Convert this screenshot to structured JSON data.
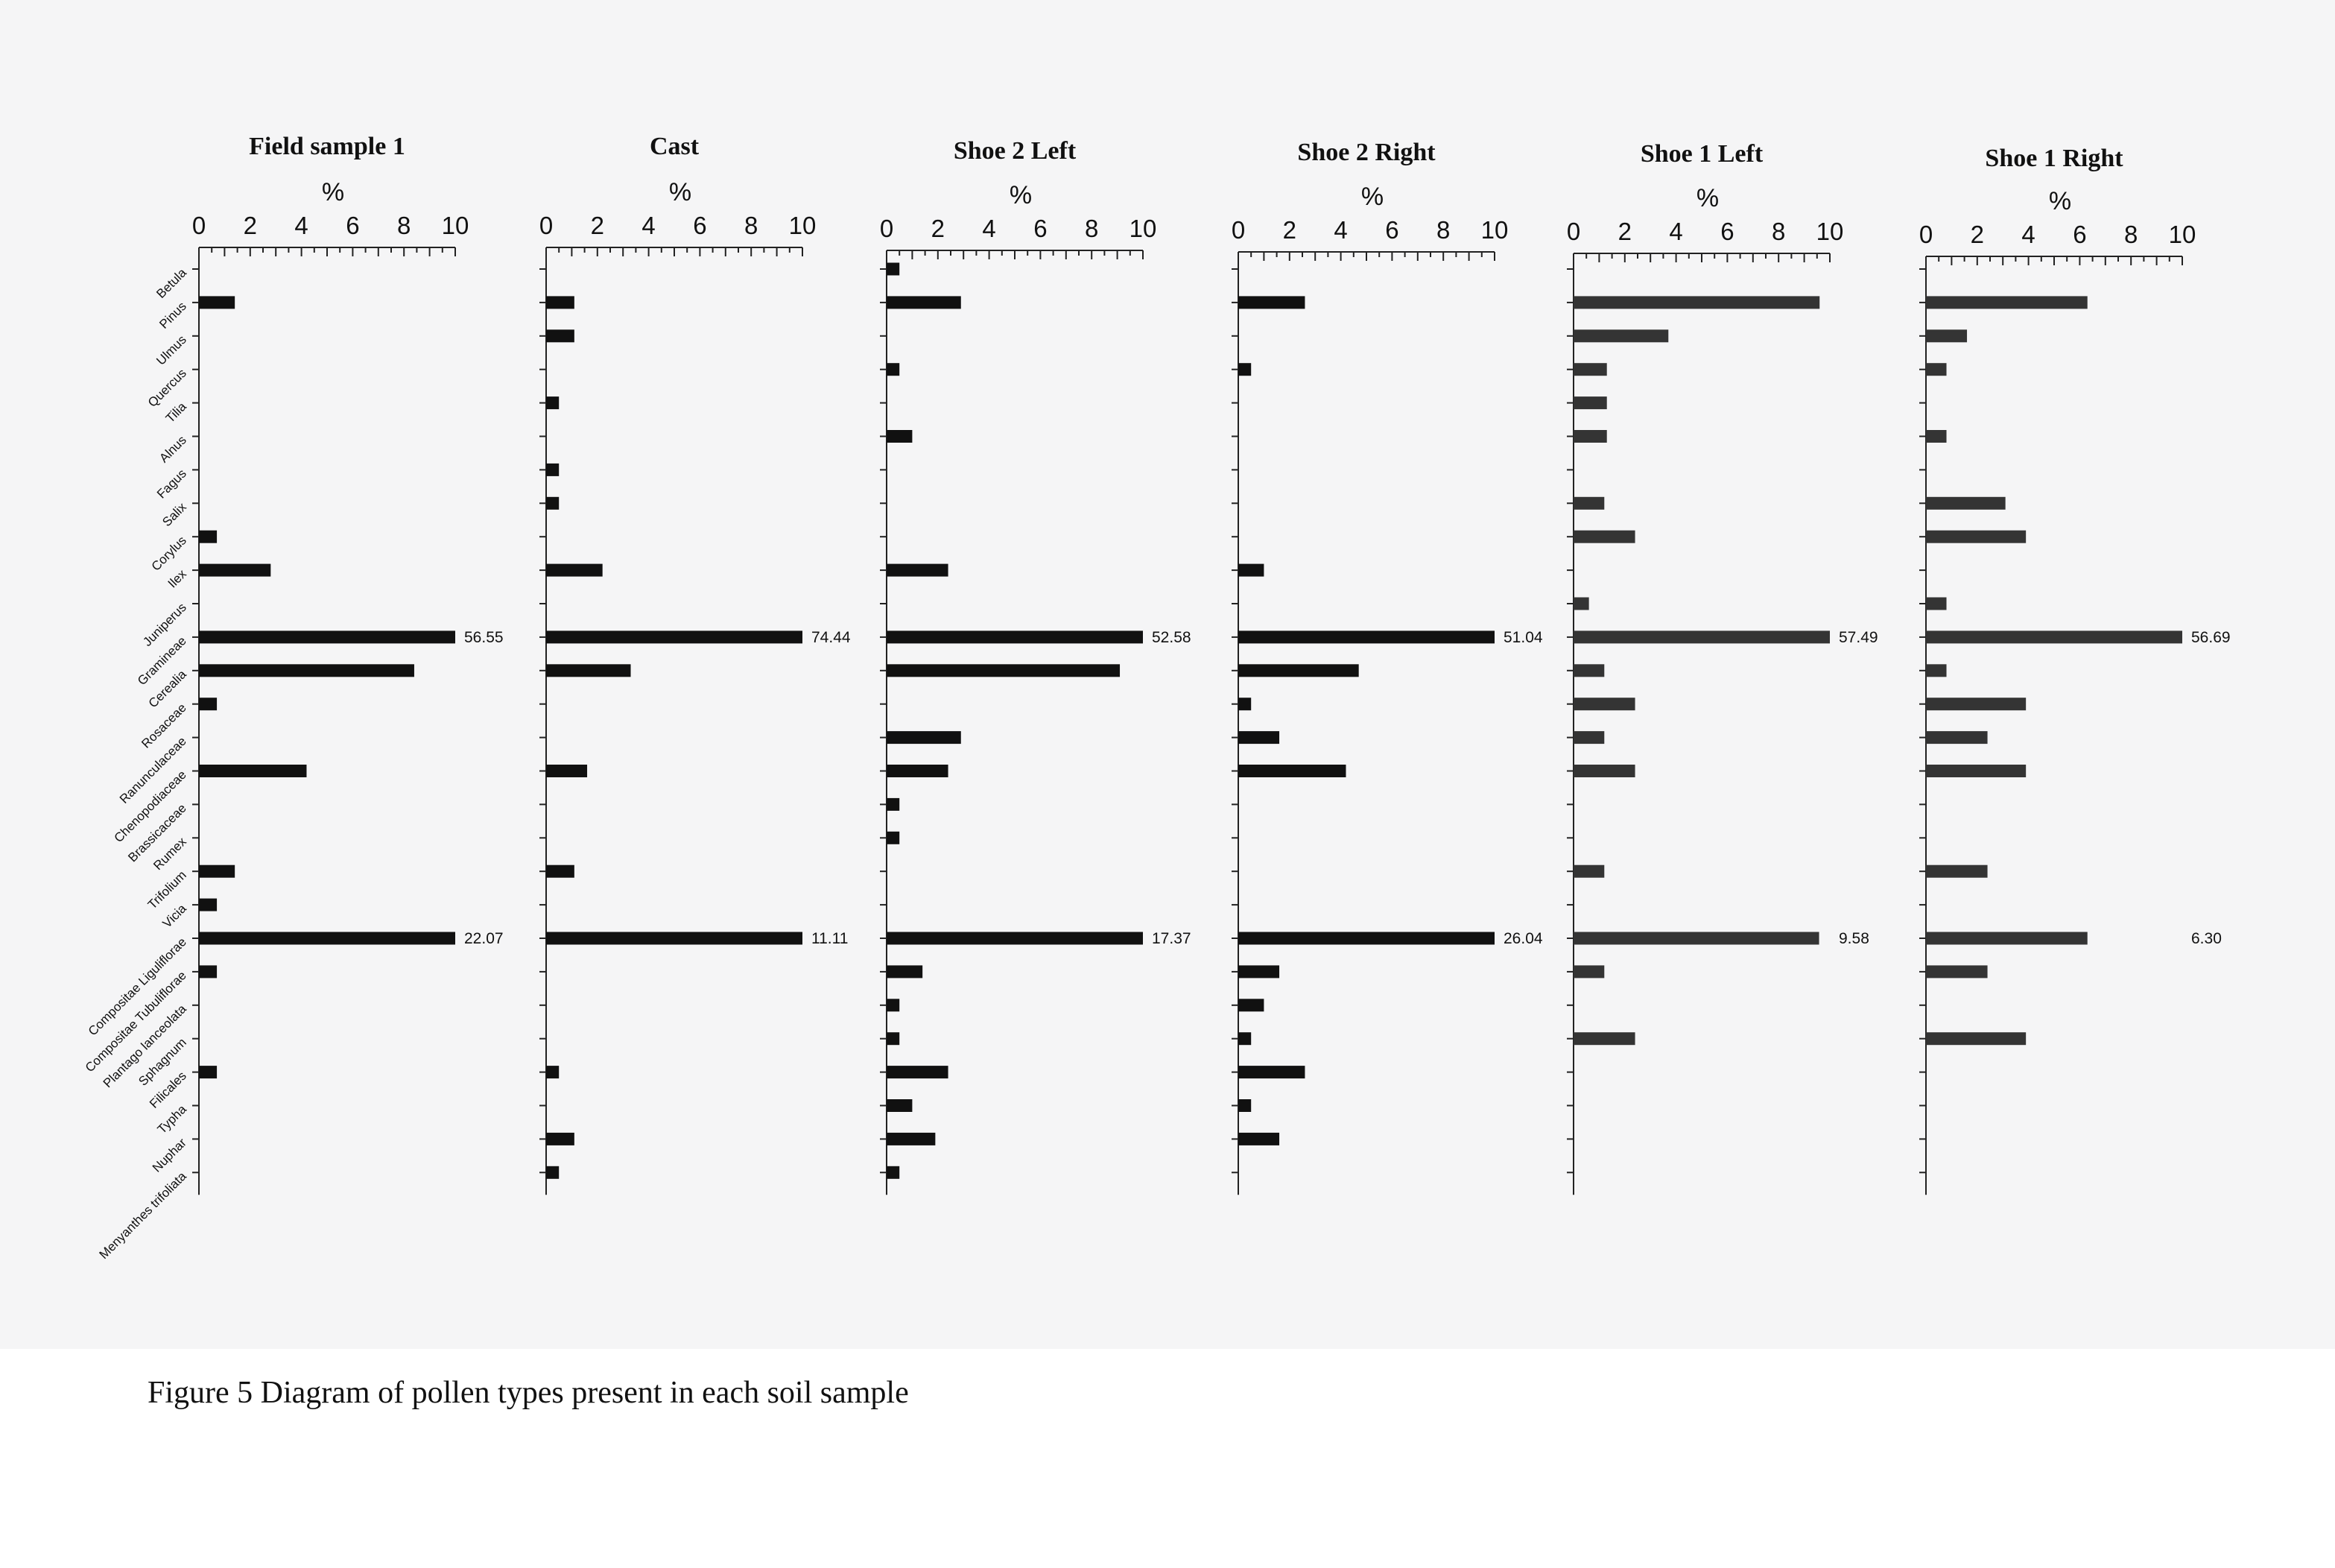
{
  "caption": "Figure 5  Diagram of pollen types present in each soil sample",
  "chart_data": {
    "type": "bar",
    "orientation": "horizontal",
    "axis_label": "%",
    "xlim": [
      0,
      10
    ],
    "ticks": [
      "0",
      "2",
      "4",
      "6",
      "8",
      "10"
    ],
    "categories": [
      "Betula",
      "Pinus",
      "Ulmus",
      "Quercus",
      "Tilia",
      "Alnus",
      "Fagus",
      "Salix",
      "Corylus",
      "Ilex",
      "Juniperus",
      "Gramineae",
      "Cerealia",
      "Rosaceae",
      "Ranunculaceae",
      "Chenopodiaceae",
      "Brassicaceae",
      "Rumex",
      "Trifolium",
      "Vicia",
      "Compositae Liguliflorae",
      "Compositae Tubuliflorae",
      "Plantago lanceolata",
      "Sphagnum",
      "Filicales",
      "Typha",
      "Nuphar",
      "Menyanthes trifoliata"
    ],
    "bar_colors": [
      "#111111",
      "#111111",
      "#111111",
      "#111111",
      "#343434",
      "#343434"
    ],
    "panels": [
      {
        "title": "Field sample 1",
        "values": [
          0,
          1.4,
          0,
          0,
          0,
          0,
          0,
          0,
          0.7,
          2.8,
          0,
          56.55,
          8.4,
          0.7,
          0,
          4.2,
          0,
          0,
          1.4,
          0.7,
          22.07,
          0.7,
          0,
          0,
          0.7,
          0,
          0,
          0
        ],
        "value_labels": [
          null,
          null,
          null,
          null,
          null,
          null,
          null,
          null,
          null,
          null,
          null,
          "56.55",
          null,
          null,
          null,
          null,
          null,
          null,
          null,
          null,
          "22.07",
          null,
          null,
          null,
          null,
          null,
          null,
          null
        ]
      },
      {
        "title": "Cast",
        "values": [
          0,
          1.1,
          1.1,
          0,
          0.5,
          0,
          0.5,
          0.5,
          0,
          2.2,
          0,
          74.44,
          3.3,
          0,
          0,
          1.6,
          0,
          0,
          1.1,
          0,
          11.11,
          0,
          0,
          0,
          0.5,
          0,
          1.1,
          0.5
        ],
        "value_labels": [
          null,
          null,
          null,
          null,
          null,
          null,
          null,
          null,
          null,
          null,
          null,
          "74.44",
          null,
          null,
          null,
          null,
          null,
          null,
          null,
          null,
          "11.11",
          null,
          null,
          null,
          null,
          null,
          null,
          null
        ]
      },
      {
        "title": "Shoe 2 Left",
        "values": [
          0.5,
          2.9,
          0,
          0.5,
          0,
          1.0,
          0,
          0,
          0,
          2.4,
          0,
          52.58,
          9.1,
          0,
          2.9,
          2.4,
          0.5,
          0.5,
          0,
          0,
          17.37,
          1.4,
          0.5,
          0.5,
          2.4,
          1.0,
          1.9,
          0.5
        ],
        "value_labels": [
          null,
          null,
          null,
          null,
          null,
          null,
          null,
          null,
          null,
          null,
          null,
          "52.58",
          null,
          null,
          null,
          null,
          null,
          null,
          null,
          null,
          "17.37",
          null,
          null,
          null,
          null,
          null,
          null,
          null
        ]
      },
      {
        "title": "Shoe 2 Right",
        "values": [
          0,
          2.6,
          0,
          0.5,
          0,
          0,
          0,
          0,
          0,
          1.0,
          0,
          51.04,
          4.7,
          0.5,
          1.6,
          4.2,
          0,
          0,
          0,
          0,
          26.04,
          1.6,
          1.0,
          0.5,
          2.6,
          0.5,
          1.6,
          0
        ],
        "value_labels": [
          null,
          null,
          null,
          null,
          null,
          null,
          null,
          null,
          null,
          null,
          null,
          "51.04",
          null,
          null,
          null,
          null,
          null,
          null,
          null,
          null,
          "26.04",
          null,
          null,
          null,
          null,
          null,
          null,
          null
        ]
      },
      {
        "title": "Shoe 1 Left",
        "values": [
          0,
          9.6,
          3.7,
          1.3,
          1.3,
          1.3,
          0,
          1.2,
          2.4,
          0,
          0.6,
          57.49,
          1.2,
          2.4,
          1.2,
          2.4,
          0,
          0,
          1.2,
          0,
          9.58,
          1.2,
          0,
          2.4,
          0,
          0,
          0,
          0
        ],
        "value_labels": [
          null,
          null,
          null,
          null,
          null,
          null,
          null,
          null,
          null,
          null,
          null,
          "57.49",
          null,
          null,
          null,
          null,
          null,
          null,
          null,
          null,
          "9.58",
          null,
          null,
          null,
          null,
          null,
          null,
          null
        ]
      },
      {
        "title": "Shoe 1 Right",
        "values": [
          0,
          6.3,
          1.6,
          0.8,
          0,
          0.8,
          0,
          3.1,
          3.9,
          0,
          0.8,
          56.69,
          0.8,
          3.9,
          2.4,
          3.9,
          0,
          0,
          2.4,
          0,
          6.3,
          2.4,
          0,
          3.9,
          0,
          0,
          0,
          0
        ],
        "value_labels": [
          null,
          null,
          null,
          null,
          null,
          null,
          null,
          null,
          null,
          null,
          null,
          "56.69",
          null,
          null,
          null,
          null,
          null,
          null,
          null,
          null,
          "6.30",
          null,
          null,
          null,
          null,
          null,
          null,
          null
        ]
      }
    ]
  }
}
